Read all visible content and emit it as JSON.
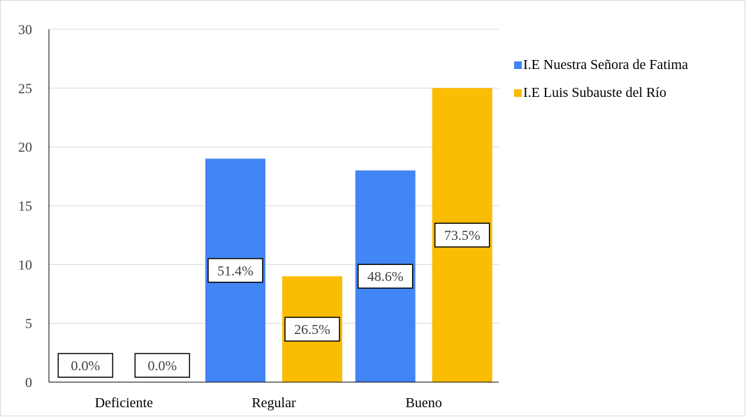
{
  "chart_data": {
    "type": "bar",
    "categories": [
      "Deficiente",
      "Regular",
      "Bueno"
    ],
    "series": [
      {
        "name": "I.E Nuestra Señora de Fatima",
        "color": "#4285f4",
        "values": [
          0,
          19,
          18
        ],
        "labels": [
          "0.0%",
          "51.4%",
          "48.6%"
        ]
      },
      {
        "name": "I.E Luis Subauste del Río",
        "color": "#fbbc04",
        "values": [
          0,
          9,
          25
        ],
        "labels": [
          "0.0%",
          "26.5%",
          "73.5%"
        ]
      }
    ],
    "y_ticks": [
      "0",
      "5",
      "10",
      "15",
      "20",
      "25",
      "30"
    ],
    "ylim": [
      0,
      30
    ],
    "grid": true,
    "legend_position": "right"
  }
}
